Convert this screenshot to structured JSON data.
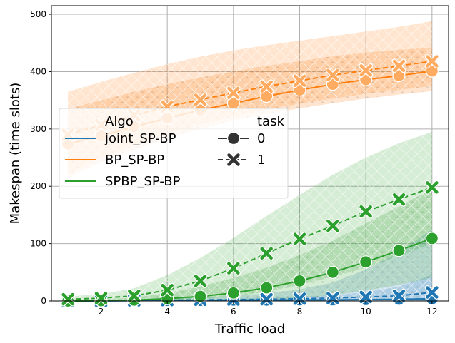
{
  "chart_data": {
    "type": "line",
    "xlabel": "Traffic load",
    "ylabel": "Makespan (time slots)",
    "xlim": [
      0.5,
      12.5
    ],
    "ylim": [
      0,
      515
    ],
    "xticks": [
      2,
      4,
      6,
      8,
      10,
      12
    ],
    "yticks": [
      0,
      100,
      200,
      300,
      400,
      500
    ],
    "grid": true,
    "x": [
      1,
      2,
      3,
      4,
      5,
      6,
      7,
      8,
      9,
      10,
      11,
      12
    ],
    "legend": {
      "placement": "center-left",
      "algo_title": "Algo",
      "task_title": "task",
      "task_entries": [
        {
          "label": "0",
          "marker": "circle",
          "dash": "solid"
        },
        {
          "label": "1",
          "marker": "x",
          "dash": "dashed"
        }
      ]
    },
    "series": [
      {
        "algo": "joint_SP-BP",
        "task": "0",
        "color": "#1f77b4",
        "values": [
          0,
          0,
          0.5,
          1,
          1,
          1.5,
          1.5,
          2,
          2,
          2.5,
          3,
          4
        ],
        "band_low": [
          0,
          0,
          0,
          0,
          0,
          0,
          0,
          0,
          0,
          0,
          0,
          0
        ],
        "band_high": [
          0,
          0,
          1,
          2,
          3,
          4,
          5,
          7,
          10,
          15,
          25,
          45
        ]
      },
      {
        "algo": "joint_SP-BP",
        "task": "1",
        "color": "#1f77b4",
        "values": [
          0,
          0.5,
          1,
          1.5,
          2,
          2.5,
          3,
          4,
          5,
          7,
          9,
          15
        ],
        "band_low": [
          0,
          0,
          0,
          0,
          0,
          0,
          0,
          0,
          0,
          0,
          0,
          0
        ],
        "band_high": [
          0,
          1,
          2,
          4,
          6,
          9,
          13,
          20,
          32,
          55,
          85,
          125
        ]
      },
      {
        "algo": "BP_SP-BP",
        "task": "0",
        "color": "#ff7f0e",
        "values": [
          274,
          288,
          304,
          319,
          333,
          345,
          357,
          368,
          378,
          386,
          393,
          401
        ],
        "band_low": [
          215,
          242,
          264,
          283,
          300,
          315,
          326,
          336,
          345,
          353,
          360,
          366
        ],
        "band_high": [
          335,
          350,
          365,
          378,
          390,
          400,
          410,
          418,
          427,
          433,
          438,
          442
        ]
      },
      {
        "algo": "BP_SP-BP",
        "task": "1",
        "color": "#ff7f0e",
        "values": [
          290,
          307,
          324,
          339,
          351,
          363,
          374,
          384,
          394,
          402,
          410,
          418
        ],
        "band_low": [
          220,
          250,
          272,
          292,
          308,
          322,
          334,
          344,
          353,
          361,
          368,
          375
        ],
        "band_high": [
          365,
          382,
          398,
          413,
          426,
          437,
          446,
          454,
          462,
          470,
          478,
          488
        ]
      },
      {
        "algo": "SPBP_SP-BP",
        "task": "0",
        "color": "#2ca02c",
        "values": [
          0,
          0.5,
          1.5,
          4,
          8,
          14,
          23,
          35,
          50,
          68,
          88,
          109
        ],
        "band_low": [
          0,
          0,
          0,
          0,
          0,
          0,
          0,
          5,
          10,
          18,
          28,
          40
        ],
        "band_high": [
          2,
          3,
          6,
          14,
          25,
          40,
          58,
          80,
          105,
          135,
          165,
          195
        ]
      },
      {
        "algo": "SPBP_SP-BP",
        "task": "1",
        "color": "#2ca02c",
        "values": [
          3,
          5,
          9,
          19,
          35,
          57,
          83,
          108,
          131,
          156,
          177,
          198
        ],
        "band_low": [
          0,
          0,
          0,
          1,
          3,
          8,
          16,
          28,
          42,
          58,
          78,
          100
        ],
        "band_high": [
          8,
          12,
          22,
          45,
          75,
          110,
          148,
          185,
          220,
          250,
          275,
          295
        ]
      }
    ]
  }
}
